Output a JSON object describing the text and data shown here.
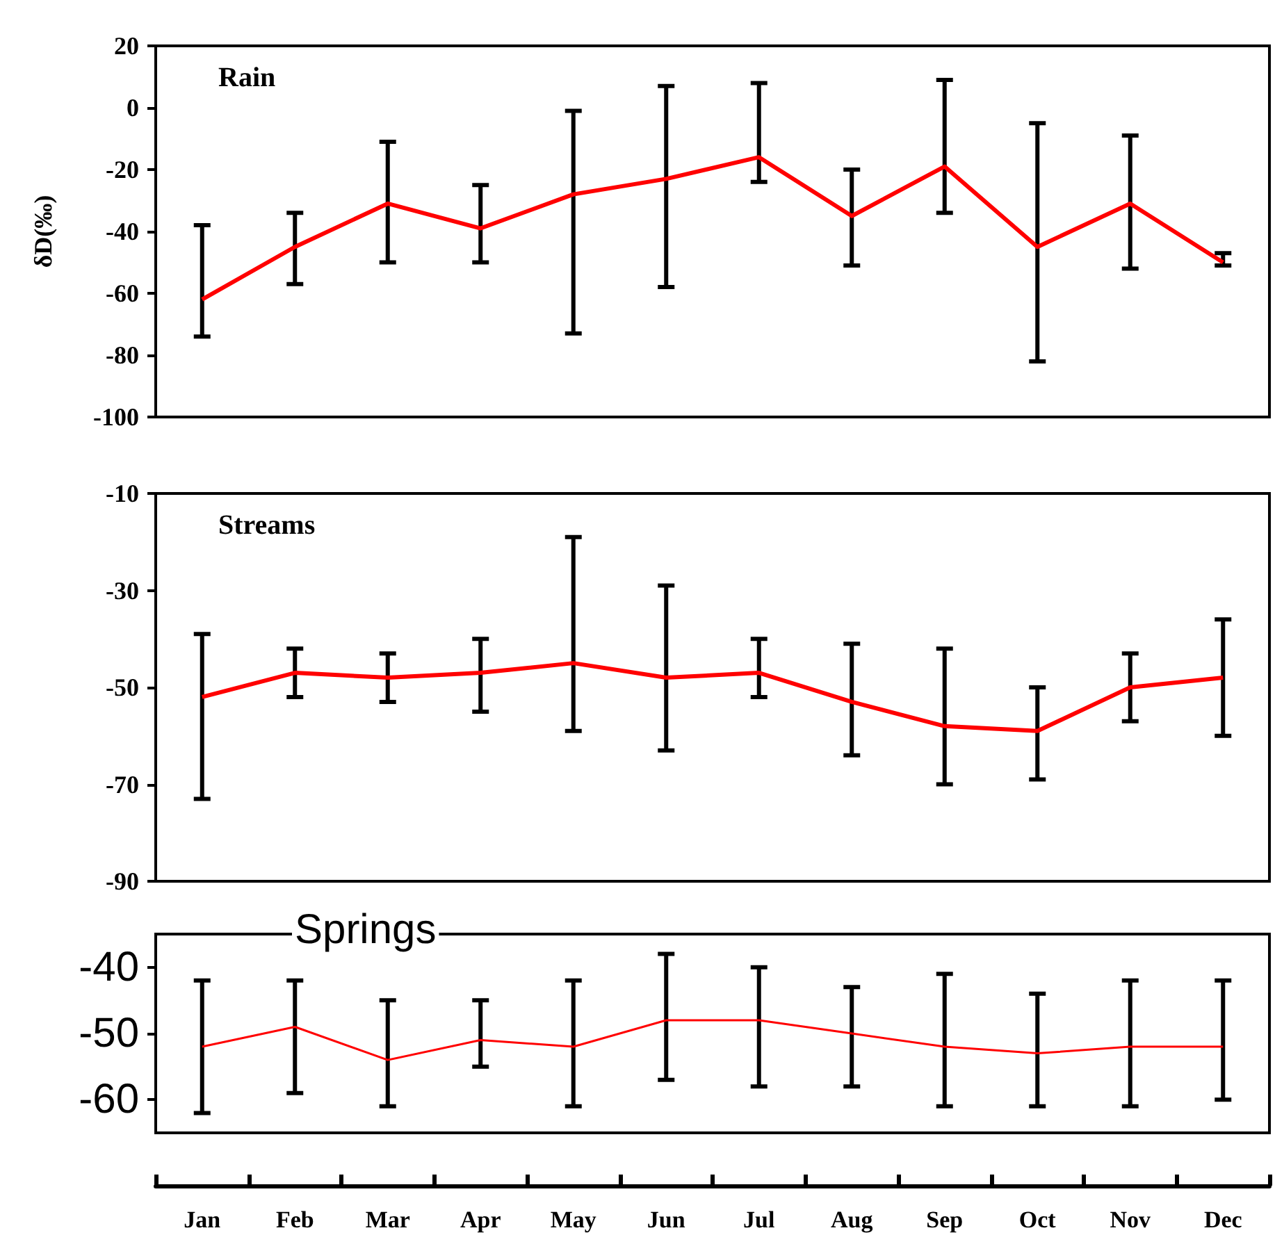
{
  "chart_data": [
    {
      "type": "line",
      "title": "Rain",
      "ylabel": "δD(‰)",
      "categories": [
        null,
        null,
        null,
        null,
        null,
        null,
        null,
        null,
        null,
        null,
        null,
        null
      ],
      "series": [
        {
          "color": "#ff0000",
          "values": [
            -62,
            -45,
            -31,
            -39,
            -28,
            -23,
            -16,
            -35,
            -19,
            -45,
            -31,
            -50
          ],
          "errors": [
            [
              -74,
              -38
            ],
            [
              -57,
              -34
            ],
            [
              -50,
              -11
            ],
            [
              -50,
              -25
            ],
            [
              -73,
              -1
            ],
            [
              -58,
              7
            ],
            [
              -24,
              8
            ],
            [
              -51,
              -20
            ],
            [
              -34,
              9
            ],
            [
              -82,
              -5
            ],
            [
              -52,
              -9
            ],
            [
              -51,
              -47
            ]
          ]
        }
      ],
      "ylim": [
        -100,
        20
      ],
      "yticks": [
        -100,
        -80,
        -60,
        -40,
        -20,
        0,
        20
      ],
      "tick_labels": "y",
      "marker": "none",
      "line_style": "solid",
      "grid": false
    },
    {
      "type": "line",
      "title": "Streams",
      "categories": [
        null,
        null,
        null,
        null,
        null,
        null,
        null,
        null,
        null,
        null,
        null,
        null
      ],
      "series": [
        {
          "color": "#ff0000",
          "values": [
            -52,
            -47,
            -48,
            -47,
            -45,
            -48,
            -47,
            -53,
            -58,
            -59,
            -50,
            -48
          ],
          "errors": [
            [
              -73,
              -39
            ],
            [
              -52,
              -42
            ],
            [
              -53,
              -43
            ],
            [
              -55,
              -40
            ],
            [
              -59,
              -19
            ],
            [
              -63,
              -29
            ],
            [
              -52,
              -40
            ],
            [
              -64,
              -41
            ],
            [
              -70,
              -42
            ],
            [
              -69,
              -50
            ],
            [
              -57,
              -43
            ],
            [
              -60,
              -36
            ]
          ]
        }
      ],
      "ylim": [
        -90,
        -10
      ],
      "yticks": [
        -90,
        -70,
        -50,
        -30,
        -10
      ],
      "tick_labels": "y",
      "marker": "none",
      "line_style": "solid",
      "grid": false
    },
    {
      "type": "line",
      "title": "Springs",
      "categories": [
        "Jan",
        "Feb",
        "Mar",
        "Apr",
        "May",
        "Jun",
        "Jul",
        "Aug",
        "Sep",
        "Oct",
        "Nov",
        "Dec"
      ],
      "series": [
        {
          "color": "#ff0000",
          "values": [
            -52,
            -49,
            -54,
            -51,
            -52,
            -48,
            -48,
            -50,
            -52,
            -53,
            -52,
            -52
          ],
          "errors": [
            [
              -62,
              -42
            ],
            [
              -59,
              -42
            ],
            [
              -61,
              -45
            ],
            [
              -55,
              -45
            ],
            [
              -61,
              -42
            ],
            [
              -57,
              -38
            ],
            [
              -58,
              -40
            ],
            [
              -58,
              -43
            ],
            [
              -61,
              -41
            ],
            [
              -61,
              -44
            ],
            [
              -61,
              -42
            ],
            [
              -60,
              -42
            ]
          ]
        }
      ],
      "ylim": [
        -65,
        -35
      ],
      "yticks": [
        -60,
        -50,
        -40
      ],
      "marker": "none",
      "line_style": "solid",
      "grid": false
    }
  ]
}
